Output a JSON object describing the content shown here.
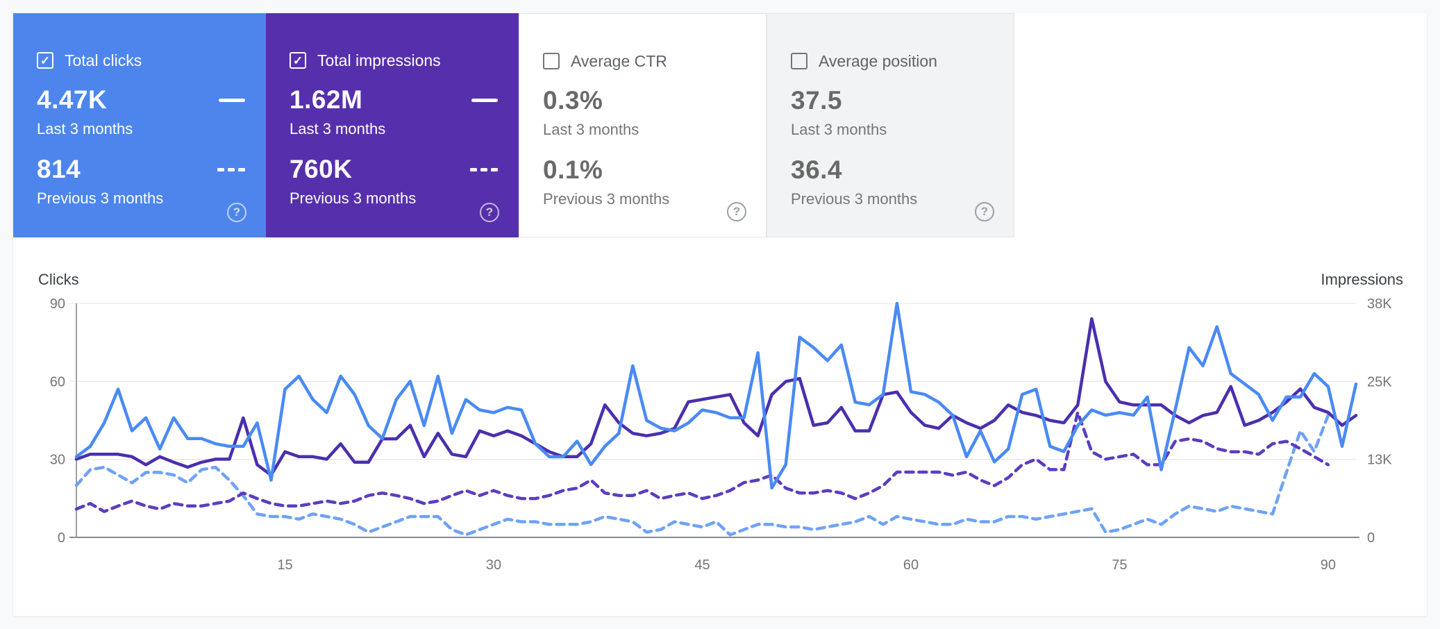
{
  "icons": {
    "help": "?",
    "check": "✓"
  },
  "cards": [
    {
      "label": "Total clicks",
      "checked": true,
      "theme": "blue",
      "bg": "#4d85ed",
      "primary": "4.47K",
      "primary_caption": "Last 3 months",
      "secondary": "814",
      "secondary_caption": "Previous 3 months"
    },
    {
      "label": "Total impressions",
      "checked": true,
      "theme": "purple",
      "bg": "#5630ac",
      "primary": "1.62M",
      "primary_caption": "Last 3 months",
      "secondary": "760K",
      "secondary_caption": "Previous 3 months"
    },
    {
      "label": "Average CTR",
      "checked": false,
      "theme": "light",
      "bg": "#ffffff",
      "primary": "0.3%",
      "primary_caption": "Last 3 months",
      "secondary": "0.1%",
      "secondary_caption": "Previous 3 months"
    },
    {
      "label": "Average position",
      "checked": false,
      "theme": "light",
      "bg": "#f1f3f4",
      "primary": "37.5",
      "primary_caption": "Last 3 months",
      "secondary": "36.4",
      "secondary_caption": "Previous 3 months"
    }
  ],
  "chart_data": {
    "type": "line",
    "left_axis": {
      "label": "Clicks",
      "range": [
        0,
        90
      ],
      "tick_values": [
        90,
        60,
        30,
        0
      ],
      "tick_labels": [
        "90",
        "60",
        "30",
        "0"
      ]
    },
    "right_axis": {
      "label": "Impressions",
      "range_k": [
        0,
        38
      ],
      "tick_labels": [
        "38K",
        "25K",
        "13K",
        "0"
      ]
    },
    "x_axis": {
      "tick_values": [
        15,
        30,
        45,
        60,
        75,
        90
      ],
      "tick_labels": [
        "15",
        "30",
        "45",
        "60",
        "75",
        "90"
      ],
      "unit": "days"
    },
    "grid": true,
    "series": [
      {
        "name": "Clicks - previous 3 months",
        "style": "dashed",
        "color": "#6fa2f7",
        "axis": "left",
        "values": [
          20,
          26,
          27,
          24,
          21,
          25,
          25,
          24,
          21,
          26,
          27,
          22,
          16,
          9,
          8,
          8,
          7,
          9,
          8,
          7,
          5,
          2,
          4,
          6,
          8,
          8,
          8,
          3,
          1,
          3,
          5,
          7,
          6,
          6,
          5,
          5,
          5,
          6,
          8,
          7,
          6,
          2,
          3,
          6,
          5,
          4,
          6,
          1,
          3,
          5,
          5,
          4,
          4,
          3,
          4,
          5,
          6,
          8,
          5,
          8,
          7,
          6,
          5,
          5,
          7,
          6,
          6,
          8,
          8,
          7,
          8,
          9,
          10,
          11,
          2,
          3,
          5,
          7,
          5,
          9,
          12,
          11,
          10,
          12,
          11,
          10,
          9,
          25,
          41,
          33,
          47
        ]
      },
      {
        "name": "Impressions - previous 3 months",
        "style": "dashed",
        "color": "#5b3dc0",
        "axis": "right",
        "unit": "K",
        "values": [
          4.6,
          5.5,
          4.2,
          5.1,
          5.9,
          5.1,
          4.6,
          5.5,
          5.1,
          5.1,
          5.5,
          5.9,
          7.2,
          6.3,
          5.5,
          5.1,
          5.1,
          5.5,
          5.9,
          5.5,
          5.9,
          6.8,
          7.2,
          6.8,
          6.3,
          5.5,
          5.9,
          6.8,
          7.6,
          6.8,
          7.6,
          6.8,
          6.3,
          6.3,
          6.8,
          7.6,
          8,
          9.3,
          7.2,
          6.8,
          6.8,
          7.6,
          6.3,
          6.8,
          7.2,
          6.3,
          6.8,
          7.6,
          8.9,
          9.3,
          10.1,
          8,
          7.2,
          7.2,
          7.6,
          7.2,
          6.3,
          7.2,
          8.4,
          10.6,
          10.6,
          10.6,
          10.6,
          10.1,
          10.6,
          9.3,
          8.4,
          9.7,
          11.8,
          12.7,
          11,
          11,
          20.3,
          13.9,
          12.7,
          13.1,
          13.5,
          11.8,
          11.8,
          15.6,
          16,
          15.6,
          14.4,
          13.9,
          13.9,
          13.5,
          15.2,
          15.6,
          14.4,
          13.1,
          11.8
        ]
      },
      {
        "name": "Impressions - last 3 months",
        "style": "solid",
        "color": "#4a2fae",
        "axis": "right",
        "unit": "K",
        "values": [
          12.7,
          13.5,
          13.5,
          13.5,
          13.1,
          11.8,
          13.1,
          12.2,
          11.4,
          12.2,
          12.7,
          12.7,
          19.4,
          11.8,
          10.1,
          13.9,
          13.1,
          13.1,
          12.7,
          15.2,
          12.2,
          12.2,
          16,
          16,
          18.2,
          13.1,
          16.9,
          13.5,
          13.1,
          17.3,
          16.5,
          17.3,
          16.5,
          15.2,
          13.9,
          13.1,
          13.1,
          15.2,
          21.5,
          18.6,
          16.9,
          16.5,
          16.9,
          17.7,
          22,
          22.4,
          22.8,
          23.2,
          18.6,
          16.5,
          23.2,
          25.3,
          25.8,
          18.2,
          18.6,
          21.1,
          17.3,
          17.3,
          23.2,
          23.6,
          20.3,
          18.2,
          17.7,
          19.8,
          18.6,
          17.7,
          19,
          21.5,
          20.3,
          19.8,
          19,
          18.6,
          21.5,
          35.5,
          25.3,
          22,
          21.5,
          21.5,
          21.5,
          19.8,
          18.6,
          19.8,
          20.3,
          24.5,
          18.2,
          19,
          20.3,
          22,
          24.1,
          21.1,
          20.3,
          18.2,
          19.8
        ]
      },
      {
        "name": "Clicks - last 3 months",
        "style": "solid",
        "color": "#4a8af4",
        "axis": "left",
        "values": [
          31,
          35,
          44,
          57,
          41,
          46,
          34,
          46,
          38,
          38,
          36,
          35,
          35,
          44,
          22,
          57,
          62,
          53,
          48,
          62,
          55,
          43,
          38,
          53,
          60,
          43,
          62,
          40,
          53,
          49,
          48,
          50,
          49,
          36,
          31,
          31,
          37,
          28,
          35,
          40,
          66,
          45,
          42,
          41,
          44,
          49,
          48,
          46,
          46,
          71,
          19,
          28,
          77,
          73,
          68,
          74,
          52,
          51,
          55,
          90,
          56,
          55,
          52,
          47,
          31,
          41,
          29,
          34,
          55,
          57,
          35,
          33,
          43,
          49,
          47,
          48,
          47,
          54,
          26,
          49,
          73,
          66,
          81,
          63,
          59,
          55,
          45,
          54,
          54,
          63,
          58,
          35,
          59
        ]
      }
    ]
  }
}
